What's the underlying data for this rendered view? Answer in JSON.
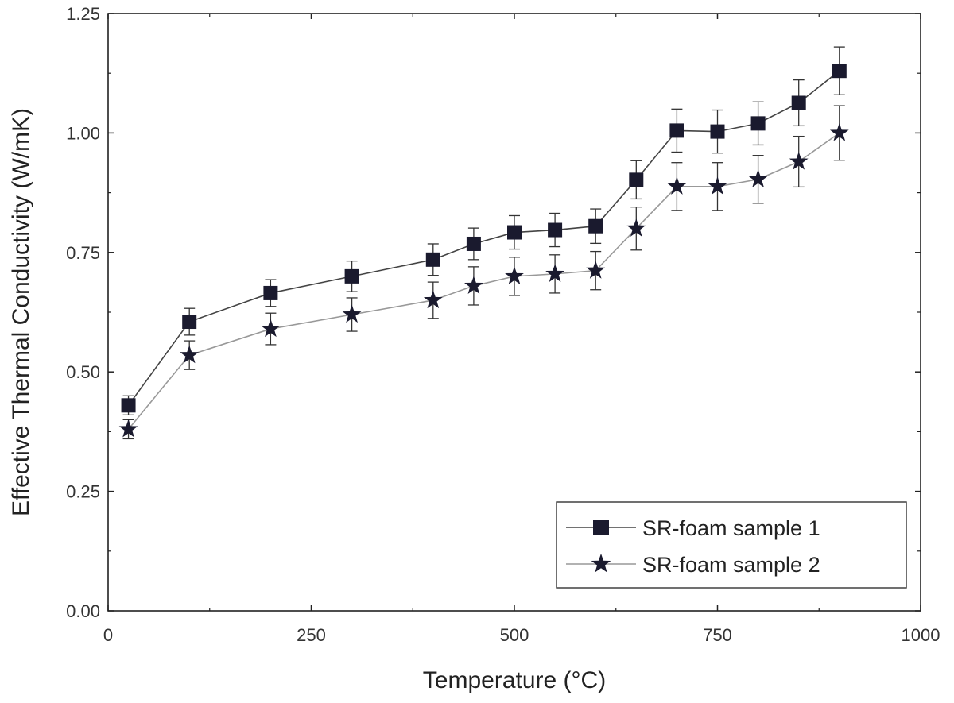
{
  "chart_data": {
    "type": "line",
    "title": "",
    "xlabel": "Temperature (°C)",
    "ylabel": "Effective Thermal Conductivity (W/mK)",
    "xlim": [
      0,
      1000
    ],
    "ylim": [
      0,
      1.25
    ],
    "xticks": [
      0,
      250,
      500,
      750,
      1000
    ],
    "xtick_labels": [
      "0",
      "250",
      "500",
      "750",
      "1000"
    ],
    "yticks": [
      0,
      0.25,
      0.5,
      0.75,
      1.0,
      1.25
    ],
    "ytick_labels": [
      "0.00",
      "0.25",
      "0.50",
      "0.75",
      "1.00",
      "1.25"
    ],
    "grid": false,
    "legend_position": "bottom-right",
    "x": [
      25,
      100,
      200,
      300,
      400,
      450,
      500,
      550,
      600,
      650,
      700,
      750,
      800,
      850,
      900
    ],
    "series": [
      {
        "name": "SR-foam sample 1",
        "marker": "square",
        "line_color": "#444444",
        "marker_color": "#1a1a2e",
        "values": [
          0.43,
          0.605,
          0.665,
          0.7,
          0.735,
          0.768,
          0.792,
          0.797,
          0.805,
          0.902,
          1.005,
          1.003,
          1.02,
          1.063,
          1.13
        ],
        "errors": [
          0.02,
          0.028,
          0.028,
          0.032,
          0.033,
          0.033,
          0.035,
          0.035,
          0.036,
          0.04,
          0.045,
          0.045,
          0.045,
          0.048,
          0.05
        ]
      },
      {
        "name": "SR-foam sample 2",
        "marker": "star",
        "line_color": "#999999",
        "marker_color": "#1a1a2e",
        "values": [
          0.38,
          0.535,
          0.59,
          0.62,
          0.65,
          0.68,
          0.7,
          0.705,
          0.712,
          0.8,
          0.888,
          0.888,
          0.903,
          0.94,
          1.0
        ],
        "errors": [
          0.02,
          0.03,
          0.033,
          0.035,
          0.038,
          0.04,
          0.04,
          0.04,
          0.04,
          0.045,
          0.05,
          0.05,
          0.05,
          0.053,
          0.057
        ]
      }
    ]
  }
}
